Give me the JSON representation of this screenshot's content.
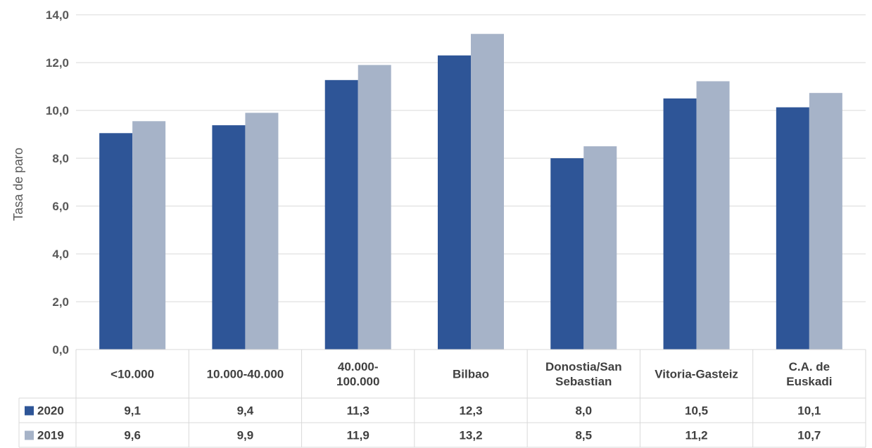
{
  "chart_data": {
    "type": "bar",
    "ylabel": "Tasa de paro",
    "ylim": [
      0,
      14
    ],
    "yticks": [
      "0,0",
      "2,0",
      "4,0",
      "6,0",
      "8,0",
      "10,0",
      "12,0",
      "14,0"
    ],
    "grid": true,
    "legend": "data-table-left",
    "categories": [
      [
        "<10.000"
      ],
      [
        "10.000-40.000"
      ],
      [
        "40.000-",
        "100.000"
      ],
      [
        "Bilbao"
      ],
      [
        "Donostia/San",
        "Sebastian"
      ],
      [
        "Vitoria-Gasteiz"
      ],
      [
        "C.A. de",
        "Euskadi"
      ]
    ],
    "series": [
      {
        "name": "2020",
        "color": "#2E5597",
        "values": [
          9.05,
          9.38,
          11.27,
          12.3,
          8.0,
          10.5,
          10.13
        ],
        "labels": [
          "9,1",
          "9,4",
          "11,3",
          "12,3",
          "8,0",
          "10,5",
          "10,1"
        ]
      },
      {
        "name": "2019",
        "color": "#A6B3C8",
        "values": [
          9.55,
          9.9,
          11.9,
          13.2,
          8.5,
          11.22,
          10.73
        ],
        "labels": [
          "9,6",
          "9,9",
          "11,9",
          "13,2",
          "8,5",
          "11,2",
          "10,7"
        ]
      }
    ]
  }
}
